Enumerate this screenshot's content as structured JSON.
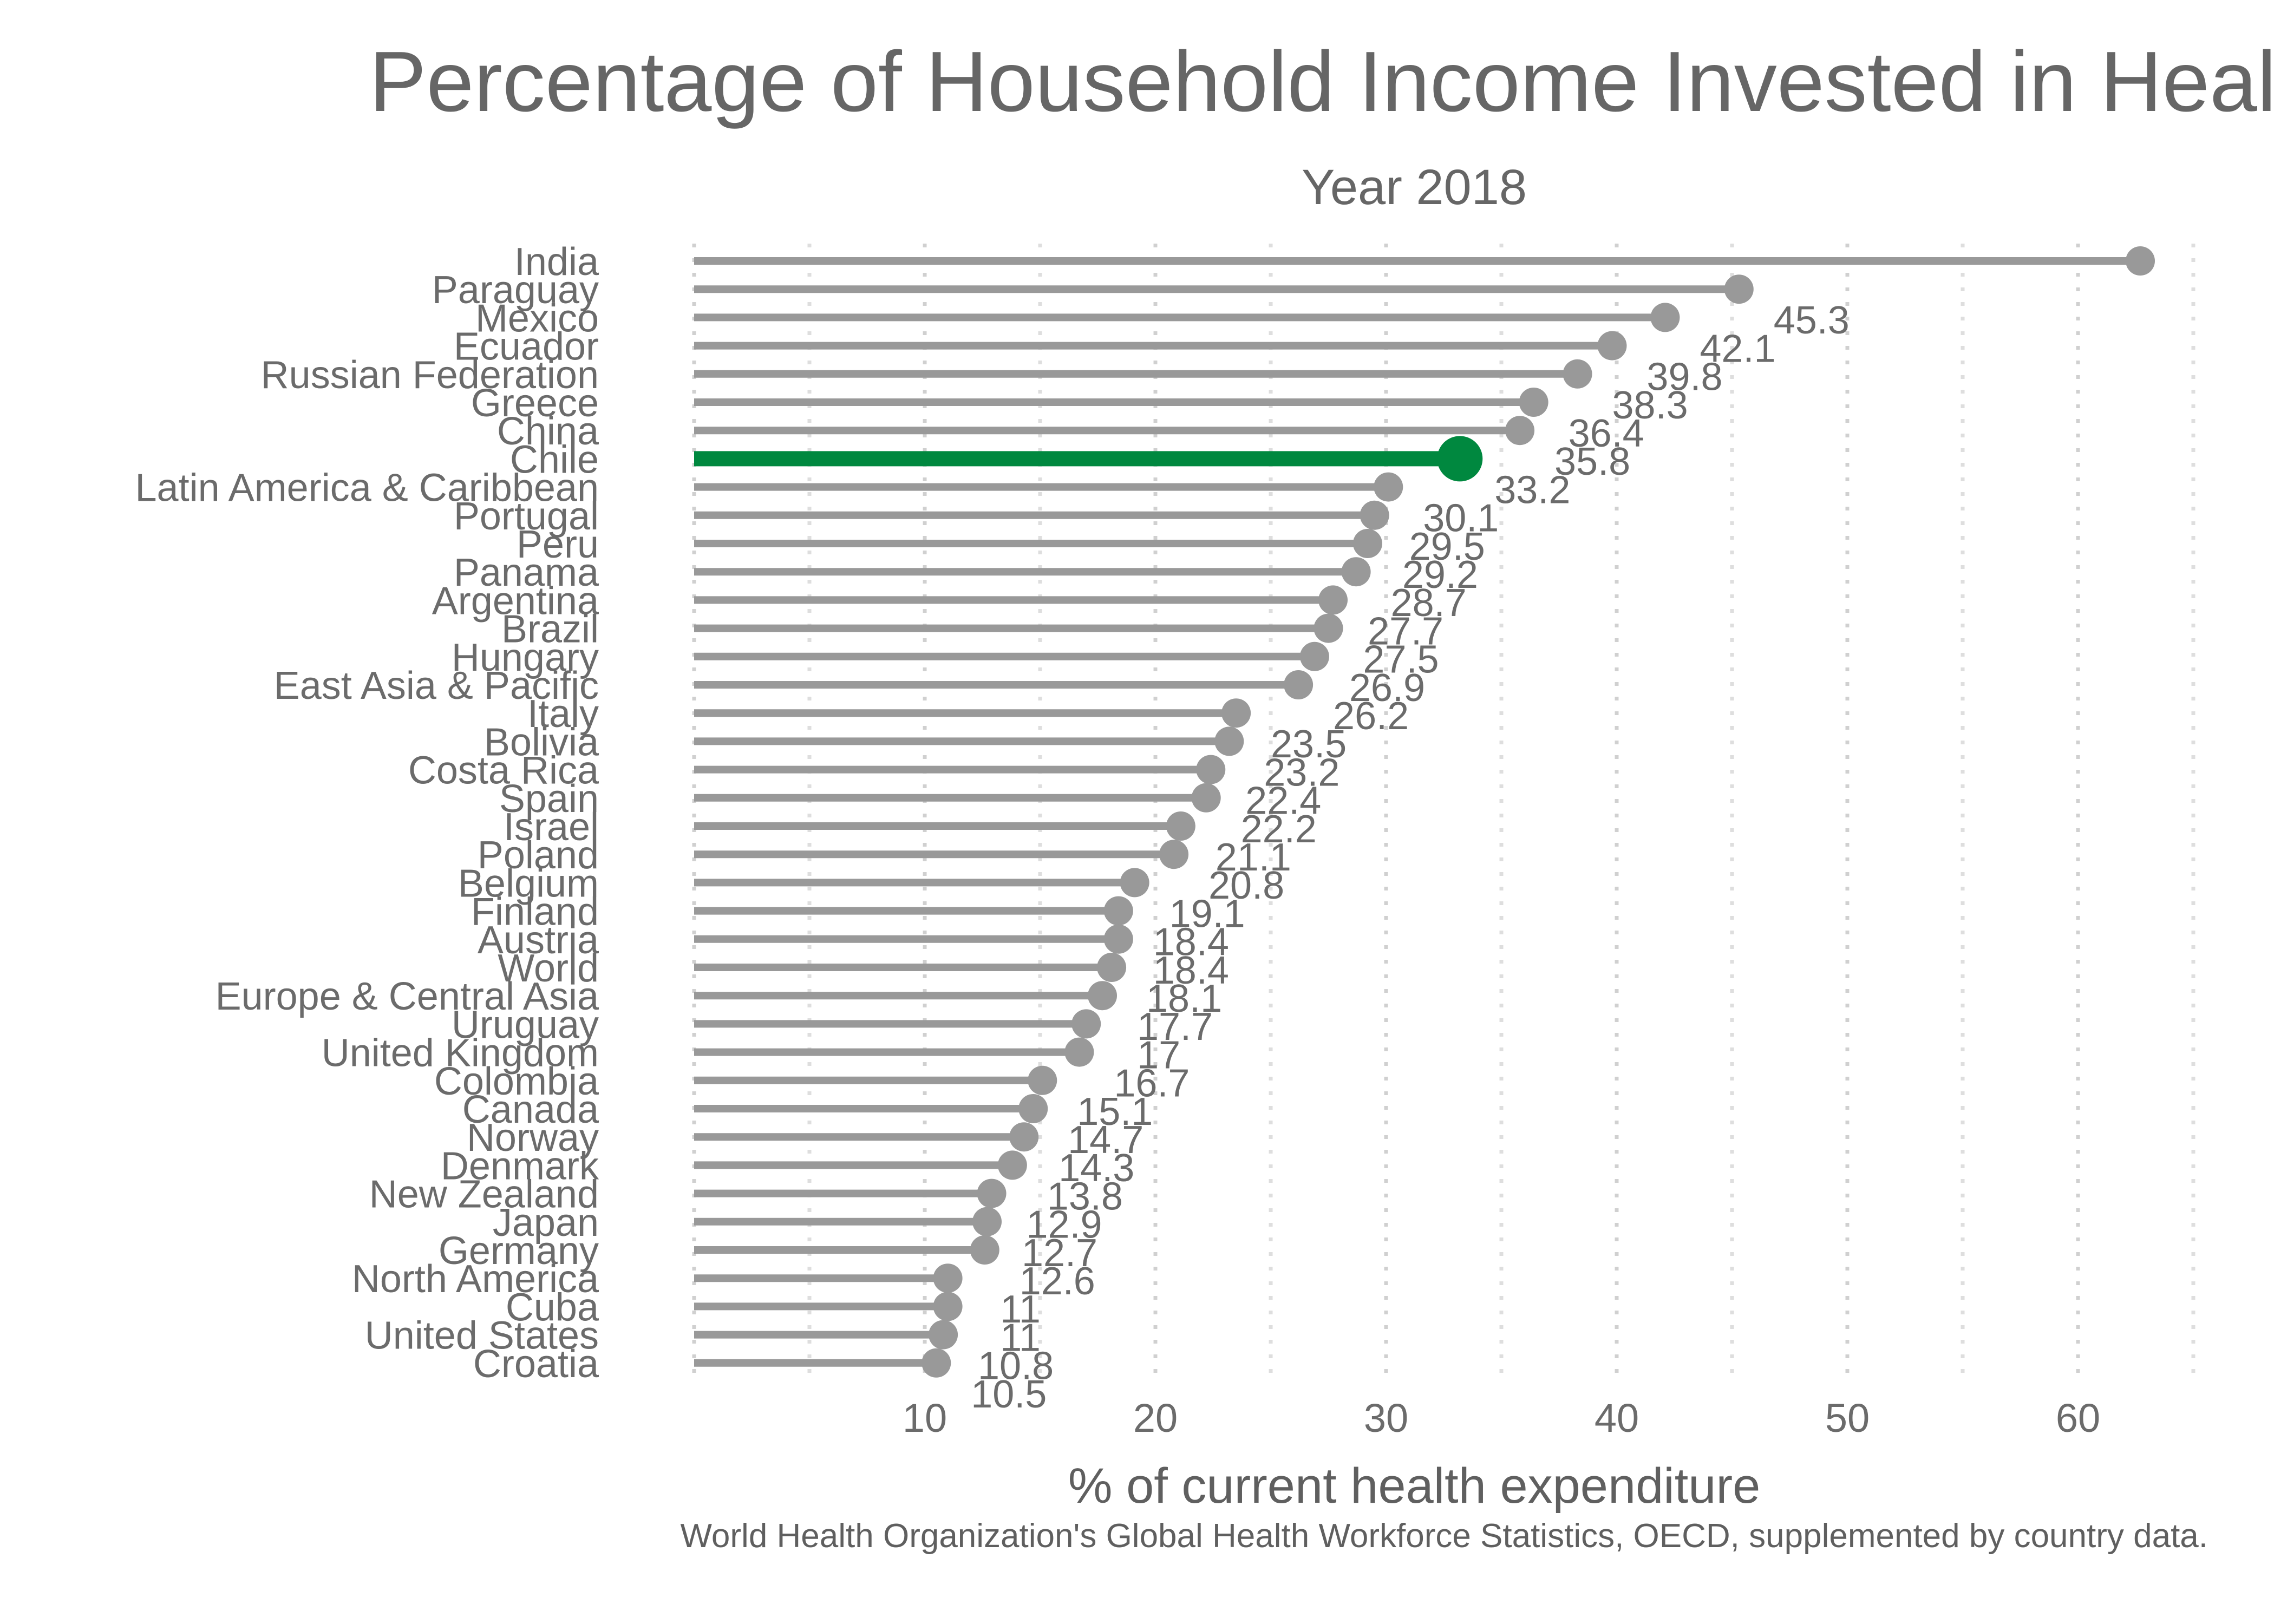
{
  "colors": {
    "background": "#ffffff",
    "lollipop": "#999999",
    "highlight": "#00883f",
    "text": "#666666",
    "grid": "#d9d9d9"
  },
  "chart_data": {
    "type": "bar",
    "orientation": "horizontal",
    "style": "lollipop",
    "title": "Percentage of Household Income Invested in Health",
    "subtitle": "Year 2018",
    "xlabel": "% of current health expenditure",
    "ylabel": "",
    "caption": "World Health Organization's Global Health Workforce Statistics, OECD, supplemented by country data.",
    "xlim": [
      0,
      65
    ],
    "x_ticks": [
      10,
      20,
      30,
      40,
      50,
      60
    ],
    "grid": "vertical dotted",
    "highlight": "Chile",
    "categories": [
      "India",
      "Paraguay",
      "Mexico",
      "Ecuador",
      "Russian Federation",
      "Greece",
      "China",
      "Chile",
      "Latin America & Caribbean",
      "Portugal",
      "Peru",
      "Panama",
      "Argentina",
      "Brazil",
      "Hungary",
      "East Asia & Pacific",
      "Italy",
      "Bolivia",
      "Costa Rica",
      "Spain",
      "Israel",
      "Poland",
      "Belgium",
      "Finland",
      "Austria",
      "World",
      "Europe & Central Asia",
      "Uruguay",
      "United Kingdom",
      "Colombia",
      "Canada",
      "Norway",
      "Denmark",
      "New Zealand",
      "Japan",
      "Germany",
      "North America",
      "Cuba",
      "United States",
      "Croatia"
    ],
    "values": [
      62.7,
      45.3,
      42.1,
      39.8,
      38.3,
      36.4,
      35.8,
      33.2,
      30.1,
      29.5,
      29.2,
      28.7,
      27.7,
      27.5,
      26.9,
      26.2,
      23.5,
      23.2,
      22.4,
      22.2,
      21.1,
      20.8,
      19.1,
      18.4,
      18.4,
      18.1,
      17.7,
      17,
      16.7,
      15.1,
      14.7,
      14.3,
      13.8,
      12.9,
      12.7,
      12.6,
      11,
      11,
      10.8,
      10.5
    ],
    "labels": [
      "",
      "45.3",
      "42.1",
      "39.8",
      "38.3",
      "36.4",
      "35.8",
      "33.2",
      "30.1",
      "29.5",
      "29.2",
      "28.7",
      "27.7",
      "27.5",
      "26.9",
      "26.2",
      "23.5",
      "23.2",
      "22.4",
      "22.2",
      "21.1",
      "20.8",
      "19.1",
      "18.4",
      "18.4",
      "18.1",
      "17.7",
      "17",
      "16.7",
      "15.1",
      "14.7",
      "14.3",
      "13.8",
      "12.9",
      "12.7",
      "12.6",
      "11",
      "11",
      "10.8",
      "10.5"
    ]
  }
}
